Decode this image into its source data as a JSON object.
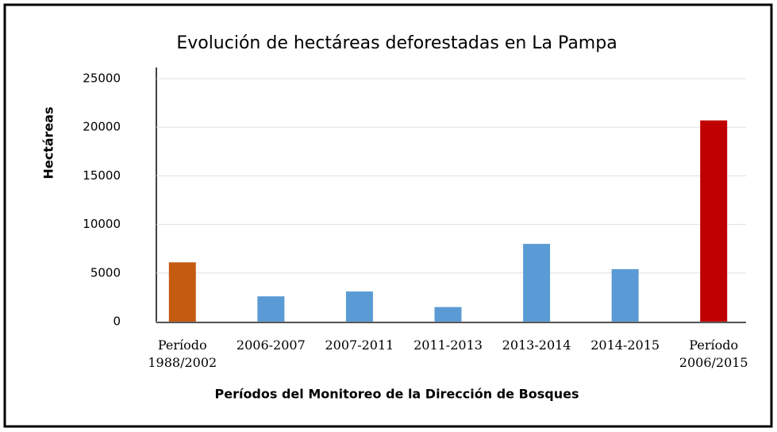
{
  "chart_data": {
    "type": "bar",
    "title": "Evolución de hectáreas deforestadas en La Pampa",
    "x_label": "Períodos del Monitoreo de la Dirección de Bosques",
    "y_label": "Hectáreas",
    "categories": [
      "Período\n1988/2002",
      "2006-2007",
      "2007-2011",
      "2011-2013",
      "2013-2014",
      "2014-2015",
      "Período\n2006/2015"
    ],
    "values": [
      6100,
      2600,
      3100,
      1500,
      8000,
      5400,
      20700
    ],
    "colors": [
      "#c55a11",
      "#5b9bd5",
      "#5b9bd5",
      "#5b9bd5",
      "#5b9bd5",
      "#5b9bd5",
      "#c00000"
    ],
    "ylim": [
      0,
      25000
    ],
    "yticks": [
      0,
      5000,
      10000,
      15000,
      20000,
      25000
    ],
    "grid": true
  }
}
